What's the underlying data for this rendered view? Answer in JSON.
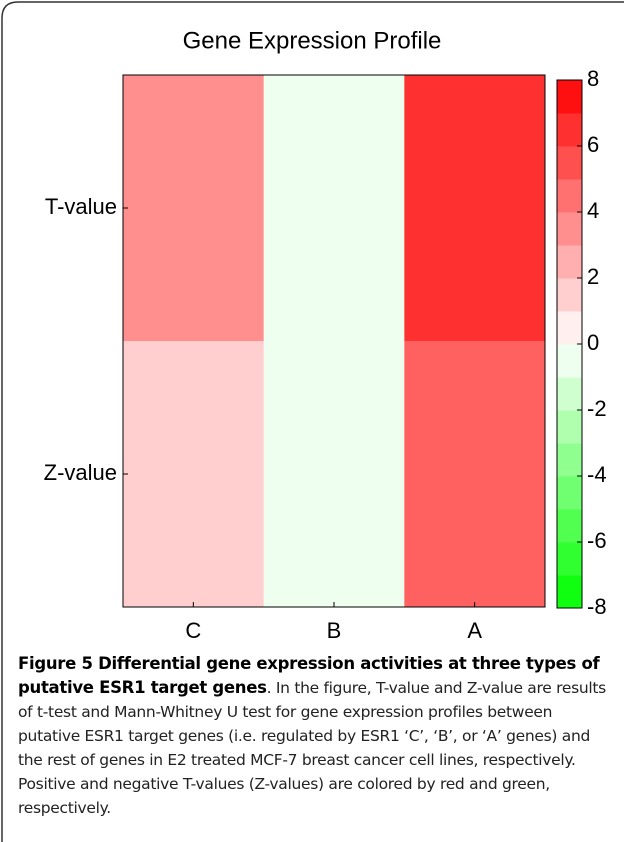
{
  "chart_data": {
    "type": "heatmap",
    "title": "Gene Expression Profile",
    "categories": [
      "C",
      "B",
      "A"
    ],
    "rows": [
      "T-value",
      "Z-value"
    ],
    "values": [
      [
        3.5,
        -0.5,
        6.5
      ],
      [
        1.5,
        -0.5,
        5
      ]
    ],
    "zlim": [
      -8,
      8
    ],
    "zticks": [
      8,
      6,
      4,
      2,
      0,
      -2,
      -4,
      -6,
      -8
    ],
    "colormap": [
      "#00ff00",
      "#ffffff",
      "#ff0000"
    ]
  },
  "caption": {
    "title": "Figure 5 Differential gene expression activities at three types of putative ESR1 target genes",
    "text": ". In the figure, T-value and Z-value are results of t-test and Mann-Whitney U test for gene expression profiles between putative ESR1 target genes (i.e. regulated by ESR1 ‘C’, ‘B’, or ‘A’ genes) and the rest of genes in E2 treated MCF-7 breast cancer cell lines, respectively. Positive and negative T-values (Z-values) are colored by red and green, respectively."
  }
}
